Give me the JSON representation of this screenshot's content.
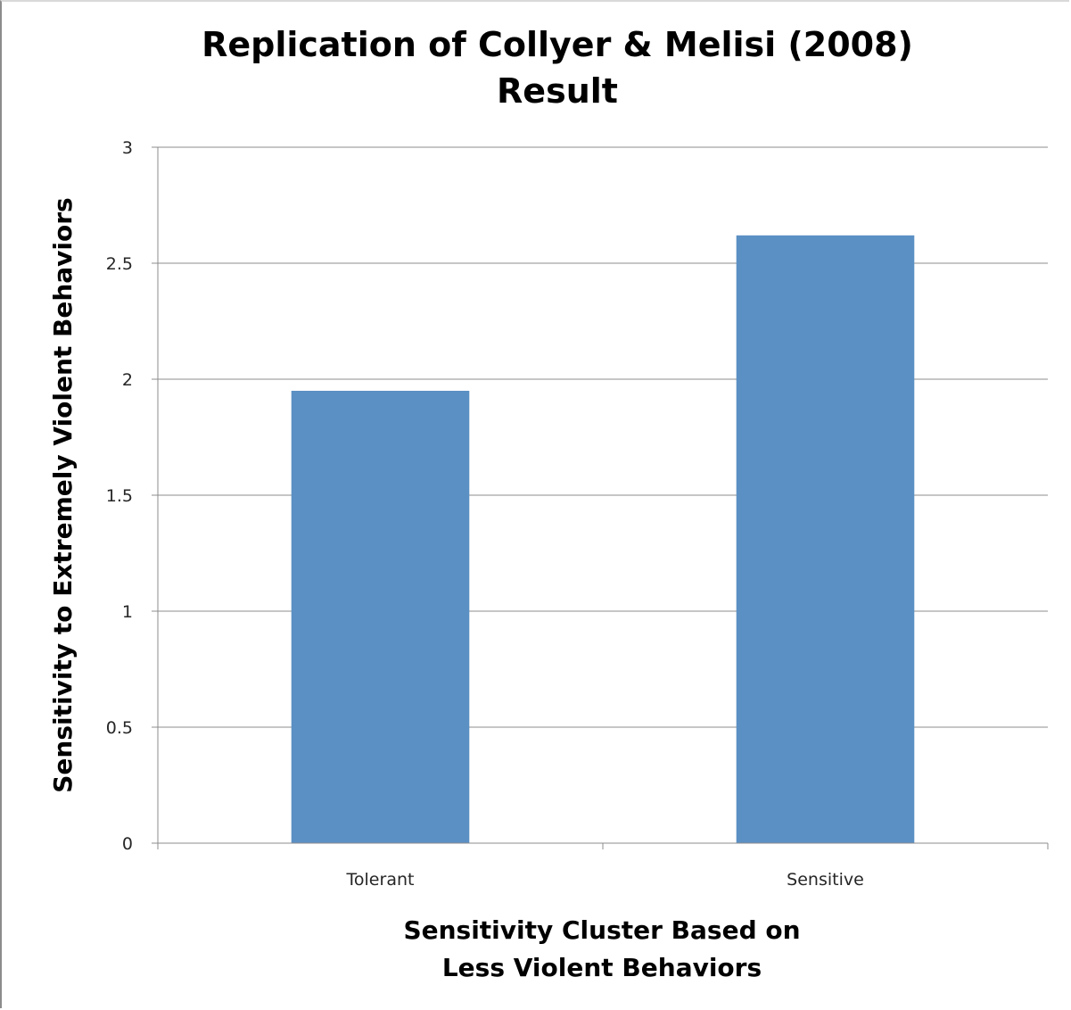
{
  "chart_data": {
    "type": "bar",
    "title": [
      "Replication of Collyer & Melisi (2008)",
      "Result"
    ],
    "xlabel": [
      "Sensitivity Cluster Based on",
      "Less Violent Behaviors"
    ],
    "ylabel": "Sensitivity to Extremely Violent Behaviors",
    "categories": [
      "Tolerant",
      "Sensitive"
    ],
    "values": [
      1.95,
      2.62
    ],
    "ylim": [
      0,
      3
    ],
    "yticks": [
      "0",
      "0.5",
      "1",
      "1.5",
      "2",
      "2.5",
      "3"
    ],
    "grid": true,
    "legend": "none",
    "bar_color": "#5b90c4"
  }
}
